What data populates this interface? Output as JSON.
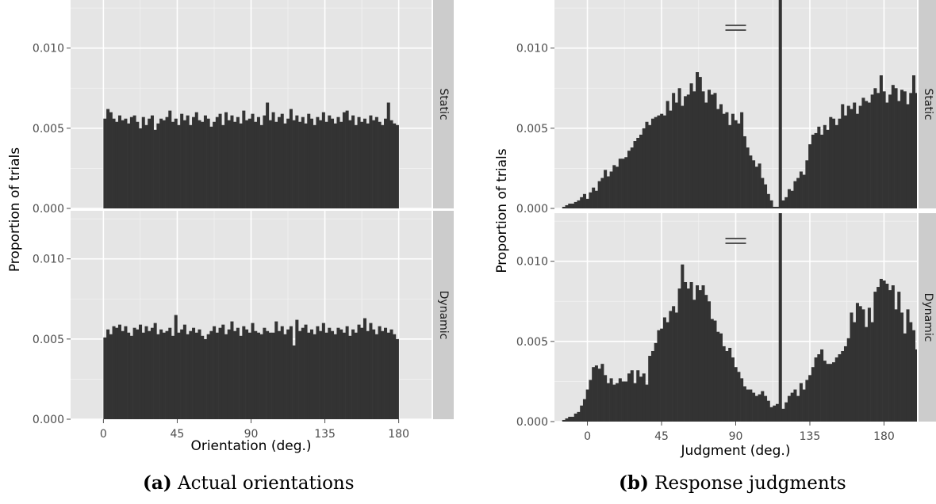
{
  "colors": {
    "panel_bg": "#e5e5e5",
    "grid_major": "#ffffff",
    "strip_bg": "#cccccc",
    "bar_fill": "#333333"
  },
  "captions": {
    "a": {
      "label": "(a)",
      "text": "Actual orientations"
    },
    "b": {
      "label": "(b)",
      "text": "Response judgments"
    }
  },
  "chart_data": [
    {
      "type": "bar",
      "id": "a",
      "ylabel": "Proportion of trials",
      "xlabel": "Orientation (deg.)",
      "x_ticks": [
        0,
        45,
        90,
        135,
        180
      ],
      "y_ticks": [
        "0.000",
        "0.005",
        "0.010"
      ],
      "xlim": [
        -20,
        200
      ],
      "ylim": [
        0,
        0.013
      ],
      "grid": true,
      "bin_start": 0,
      "bin_width": 1.8,
      "facets": [
        {
          "name": "Static",
          "values": [
            0.0056,
            0.0062,
            0.006,
            0.0056,
            0.0054,
            0.0058,
            0.0055,
            0.0056,
            0.0053,
            0.0057,
            0.0058,
            0.0054,
            0.005,
            0.0057,
            0.0052,
            0.0056,
            0.0058,
            0.0049,
            0.0053,
            0.0056,
            0.0055,
            0.0057,
            0.0061,
            0.0054,
            0.0056,
            0.0052,
            0.0059,
            0.0055,
            0.0058,
            0.0052,
            0.0057,
            0.006,
            0.0055,
            0.0054,
            0.0058,
            0.0056,
            0.0051,
            0.0054,
            0.0057,
            0.0059,
            0.0052,
            0.006,
            0.0055,
            0.0058,
            0.0054,
            0.0057,
            0.0053,
            0.0061,
            0.0055,
            0.0056,
            0.0059,
            0.0054,
            0.0057,
            0.0052,
            0.0058,
            0.0066,
            0.0055,
            0.006,
            0.0054,
            0.0057,
            0.0059,
            0.0053,
            0.0056,
            0.0062,
            0.0055,
            0.0058,
            0.0054,
            0.0057,
            0.0053,
            0.0059,
            0.0056,
            0.0052,
            0.0057,
            0.0055,
            0.006,
            0.0054,
            0.0058,
            0.0056,
            0.0053,
            0.0057,
            0.0054,
            0.006,
            0.0061,
            0.0055,
            0.0058,
            0.0052,
            0.0057,
            0.0054,
            0.0056,
            0.0053,
            0.0058,
            0.0055,
            0.0057,
            0.0054,
            0.0052,
            0.0056,
            0.0066,
            0.0055,
            0.0053,
            0.0052
          ]
        },
        {
          "name": "Dynamic",
          "values": [
            0.0051,
            0.0056,
            0.0053,
            0.0058,
            0.0057,
            0.0059,
            0.0055,
            0.0058,
            0.0054,
            0.0052,
            0.0057,
            0.0056,
            0.0059,
            0.0054,
            0.0058,
            0.0055,
            0.0057,
            0.006,
            0.0053,
            0.0056,
            0.0054,
            0.0055,
            0.0057,
            0.0052,
            0.0065,
            0.0054,
            0.0056,
            0.0059,
            0.0053,
            0.0055,
            0.0057,
            0.0054,
            0.0056,
            0.0052,
            0.005,
            0.0053,
            0.0055,
            0.0058,
            0.0054,
            0.0057,
            0.0059,
            0.0053,
            0.0056,
            0.0061,
            0.0055,
            0.0057,
            0.0052,
            0.0058,
            0.0056,
            0.0054,
            0.006,
            0.0055,
            0.0054,
            0.0053,
            0.0057,
            0.0055,
            0.0054,
            0.0054,
            0.0061,
            0.0055,
            0.0058,
            0.0053,
            0.0056,
            0.0058,
            0.0046,
            0.0062,
            0.0055,
            0.0057,
            0.0059,
            0.0054,
            0.0056,
            0.0053,
            0.0058,
            0.0055,
            0.006,
            0.0054,
            0.0057,
            0.0055,
            0.0053,
            0.0057,
            0.0056,
            0.0054,
            0.0058,
            0.0052,
            0.0056,
            0.0054,
            0.0059,
            0.0057,
            0.0063,
            0.0055,
            0.006,
            0.0056,
            0.0053,
            0.0058,
            0.0055,
            0.0057,
            0.0054,
            0.0056,
            0.0053,
            0.005
          ]
        }
      ]
    },
    {
      "type": "bar",
      "id": "b",
      "ylabel": "Proportion of trials",
      "xlabel": "Judgment (deg.)",
      "x_ticks": [
        0,
        45,
        90,
        135,
        180
      ],
      "y_ticks": [
        "0.000",
        "0.005",
        "0.010"
      ],
      "xlim": [
        -20,
        200
      ],
      "ylim": [
        0,
        0.013
      ],
      "grid": true,
      "bin_start": -15.3,
      "bin_width": 1.8,
      "broken_bar_at": 90,
      "facets": [
        {
          "name": "Static",
          "values": [
            0.0001,
            0.0002,
            0.0003,
            0.0003,
            0.0004,
            0.0005,
            0.0007,
            0.0009,
            0.0006,
            0.001,
            0.0013,
            0.0011,
            0.0017,
            0.0019,
            0.0024,
            0.002,
            0.0023,
            0.0027,
            0.0026,
            0.0031,
            0.0031,
            0.0032,
            0.0036,
            0.0038,
            0.0042,
            0.0044,
            0.0046,
            0.005,
            0.0054,
            0.0052,
            0.0056,
            0.0057,
            0.0058,
            0.0059,
            0.0058,
            0.0067,
            0.0061,
            0.0072,
            0.0066,
            0.0075,
            0.0064,
            0.007,
            0.0071,
            0.0078,
            0.0073,
            0.0085,
            0.0082,
            0.0073,
            0.0066,
            0.0074,
            0.0071,
            0.0072,
            0.0062,
            0.0065,
            0.0059,
            0.006,
            0.0052,
            0.0059,
            0.0055,
            0.0053,
            0.006,
            0.0045,
            0.0038,
            0.0033,
            0.003,
            0.0026,
            0.0028,
            0.0019,
            0.0015,
            0.0009,
            0.0005,
            0.0001,
            0.0001,
            0.02,
            0.0005,
            0.0007,
            0.0012,
            0.0011,
            0.0017,
            0.0019,
            0.0023,
            0.0021,
            0.003,
            0.004,
            0.0046,
            0.0047,
            0.0051,
            0.0046,
            0.0052,
            0.0049,
            0.0057,
            0.0056,
            0.0052,
            0.0056,
            0.0065,
            0.0058,
            0.0064,
            0.0062,
            0.0066,
            0.0059,
            0.0064,
            0.0069,
            0.0067,
            0.0066,
            0.0071,
            0.0075,
            0.0072,
            0.0083,
            0.0073,
            0.0066,
            0.0071,
            0.0077,
            0.0075,
            0.0067,
            0.0074,
            0.0073,
            0.0065,
            0.0072,
            0.0083,
            0.0072,
            0.0073,
            0.0082,
            0.0077,
            0.0071,
            0.0062,
            0.0068,
            0.0055,
            0.0051,
            0.0049,
            0.005,
            0.004,
            0.0039,
            0.0037,
            0.0035,
            0.003,
            0.0024,
            0.0022,
            0.0024,
            0.0021,
            0.0016,
            0.0012,
            0.0011,
            0.001,
            0.0009,
            0.0009,
            0.0005,
            0.0004,
            0.0003,
            0.0002,
            0.0002,
            0.0001,
            0.0001,
            0.0001,
            0.0001,
            0.0001
          ]
        },
        {
          "name": "Dynamic",
          "values": [
            0.0001,
            0.0002,
            0.0003,
            0.0003,
            0.0005,
            0.0006,
            0.001,
            0.0014,
            0.002,
            0.0026,
            0.0034,
            0.0035,
            0.0033,
            0.0036,
            0.0029,
            0.0024,
            0.0027,
            0.0023,
            0.0024,
            0.0027,
            0.0025,
            0.0025,
            0.003,
            0.0032,
            0.0024,
            0.0032,
            0.0028,
            0.003,
            0.0023,
            0.0041,
            0.0044,
            0.0049,
            0.0057,
            0.0058,
            0.0065,
            0.0062,
            0.0069,
            0.0072,
            0.0068,
            0.0083,
            0.0098,
            0.0087,
            0.0083,
            0.0087,
            0.0076,
            0.0085,
            0.0082,
            0.0085,
            0.0079,
            0.0075,
            0.0064,
            0.0063,
            0.0056,
            0.0055,
            0.0047,
            0.0044,
            0.0046,
            0.004,
            0.0034,
            0.0031,
            0.0027,
            0.0022,
            0.002,
            0.002,
            0.0018,
            0.0016,
            0.0017,
            0.0019,
            0.0016,
            0.0013,
            0.0009,
            0.001,
            0.0011,
            0.02,
            0.0008,
            0.0012,
            0.0016,
            0.0018,
            0.002,
            0.0016,
            0.0024,
            0.002,
            0.0026,
            0.0029,
            0.0034,
            0.004,
            0.0042,
            0.0045,
            0.0038,
            0.0036,
            0.0036,
            0.0037,
            0.004,
            0.0042,
            0.0044,
            0.0047,
            0.0052,
            0.0068,
            0.0062,
            0.0074,
            0.0072,
            0.007,
            0.0059,
            0.0071,
            0.0062,
            0.0081,
            0.0084,
            0.0089,
            0.0088,
            0.0086,
            0.0082,
            0.0085,
            0.007,
            0.0081,
            0.0068,
            0.0055,
            0.007,
            0.0062,
            0.0057,
            0.0045,
            0.0039,
            0.004,
            0.0036,
            0.0034,
            0.0028,
            0.0033,
            0.0029,
            0.0027,
            0.0027,
            0.0031,
            0.0026,
            0.0031,
            0.0035,
            0.003,
            0.0036,
            0.004,
            0.003,
            0.0026,
            0.0025,
            0.002,
            0.0016,
            0.0014,
            0.001,
            0.0007,
            0.0005,
            0.0005,
            0.0003,
            0.0003,
            0.0002,
            0.0002,
            0.0001,
            0.0001
          ]
        }
      ]
    }
  ]
}
